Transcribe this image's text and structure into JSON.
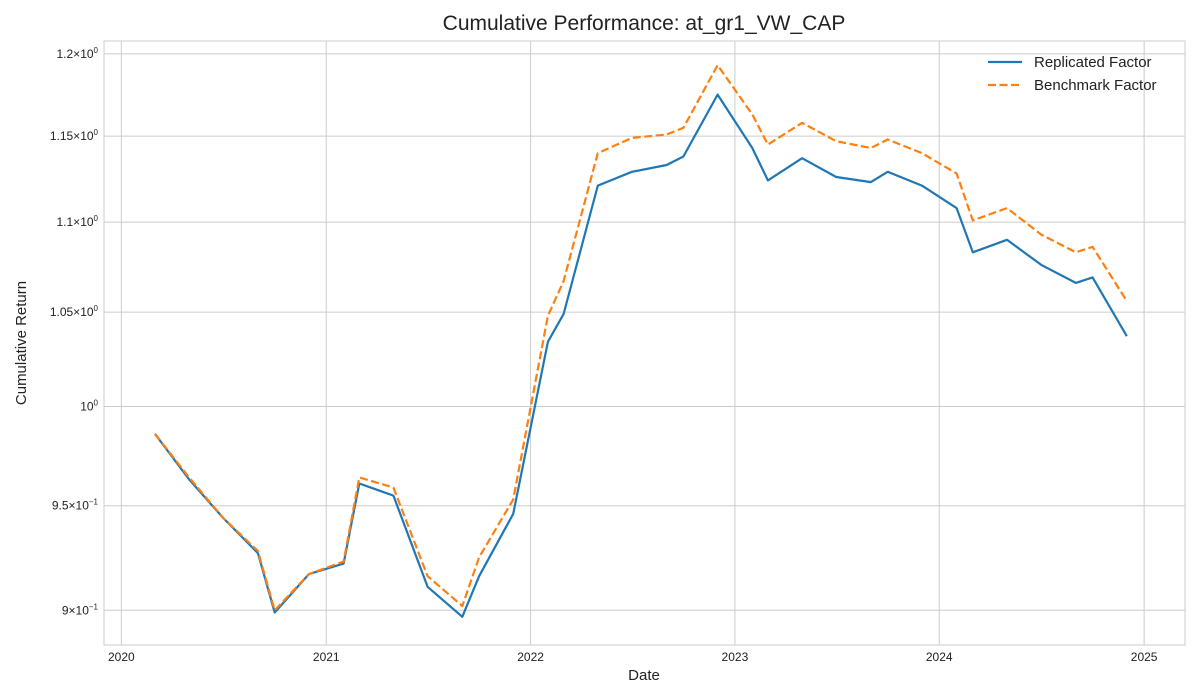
{
  "chart_data": {
    "type": "line",
    "title": "Cumulative Performance: at_gr1_VW_CAP",
    "xlabel": "Date",
    "ylabel": "Cumulative Return",
    "yscale": "log",
    "grid": true,
    "legend_position": "top-right",
    "x_ticks": [
      "2020",
      "2021",
      "2022",
      "2023",
      "2024",
      "2025"
    ],
    "y_ticks": [
      {
        "value": 0.9,
        "mantissa": "9",
        "cross": "×",
        "base": "10",
        "exp": "−1"
      },
      {
        "value": 0.95,
        "mantissa": "9.5",
        "cross": "×",
        "base": "10",
        "exp": "−1"
      },
      {
        "value": 1.0,
        "mantissa": "",
        "cross": "",
        "base": "10",
        "exp": "0"
      },
      {
        "value": 1.05,
        "mantissa": "1.05",
        "cross": "×",
        "base": "10",
        "exp": "0"
      },
      {
        "value": 1.1,
        "mantissa": "1.1",
        "cross": "×",
        "base": "10",
        "exp": "0"
      },
      {
        "value": 1.15,
        "mantissa": "1.15",
        "cross": "×",
        "base": "10",
        "exp": "0"
      },
      {
        "value": 1.2,
        "mantissa": "1.2",
        "cross": "×",
        "base": "10",
        "exp": "0"
      }
    ],
    "xlim": [
      "2019-12-01",
      "2025-03-15"
    ],
    "ylim": [
      0.884,
      1.208
    ],
    "x": [
      "2020-03-01",
      "2020-05-01",
      "2020-07-01",
      "2020-09-01",
      "2020-10-01",
      "2020-12-01",
      "2021-02-01",
      "2021-03-01",
      "2021-05-01",
      "2021-07-01",
      "2021-09-01",
      "2021-10-01",
      "2021-12-01",
      "2022-02-01",
      "2022-03-01",
      "2022-05-01",
      "2022-07-01",
      "2022-09-01",
      "2022-10-01",
      "2022-12-01",
      "2023-02-01",
      "2023-03-01",
      "2023-05-01",
      "2023-07-01",
      "2023-09-01",
      "2023-10-01",
      "2023-12-01",
      "2024-02-01",
      "2024-03-01",
      "2024-05-01",
      "2024-07-01",
      "2024-09-01",
      "2024-10-01",
      "2024-12-01"
    ],
    "series": [
      {
        "name": "Replicated Factor",
        "color": "#1f77b4",
        "dash": "solid",
        "values": [
          0.986,
          0.963,
          0.944,
          0.927,
          0.899,
          0.917,
          0.922,
          0.961,
          0.955,
          0.911,
          0.897,
          0.916,
          0.946,
          1.034,
          1.049,
          1.121,
          1.129,
          1.133,
          1.138,
          1.175,
          1.143,
          1.124,
          1.137,
          1.126,
          1.123,
          1.129,
          1.121,
          1.108,
          1.083,
          1.09,
          1.076,
          1.066,
          1.069,
          1.037
        ]
      },
      {
        "name": "Benchmark Factor",
        "color": "#ff7f0e",
        "dash": "dashed",
        "values": [
          0.986,
          0.964,
          0.944,
          0.928,
          0.9,
          0.917,
          0.923,
          0.964,
          0.959,
          0.916,
          0.902,
          0.925,
          0.953,
          1.048,
          1.067,
          1.14,
          1.149,
          1.151,
          1.155,
          1.193,
          1.163,
          1.145,
          1.158,
          1.147,
          1.143,
          1.148,
          1.14,
          1.128,
          1.101,
          1.108,
          1.093,
          1.083,
          1.086,
          1.056
        ]
      }
    ]
  }
}
